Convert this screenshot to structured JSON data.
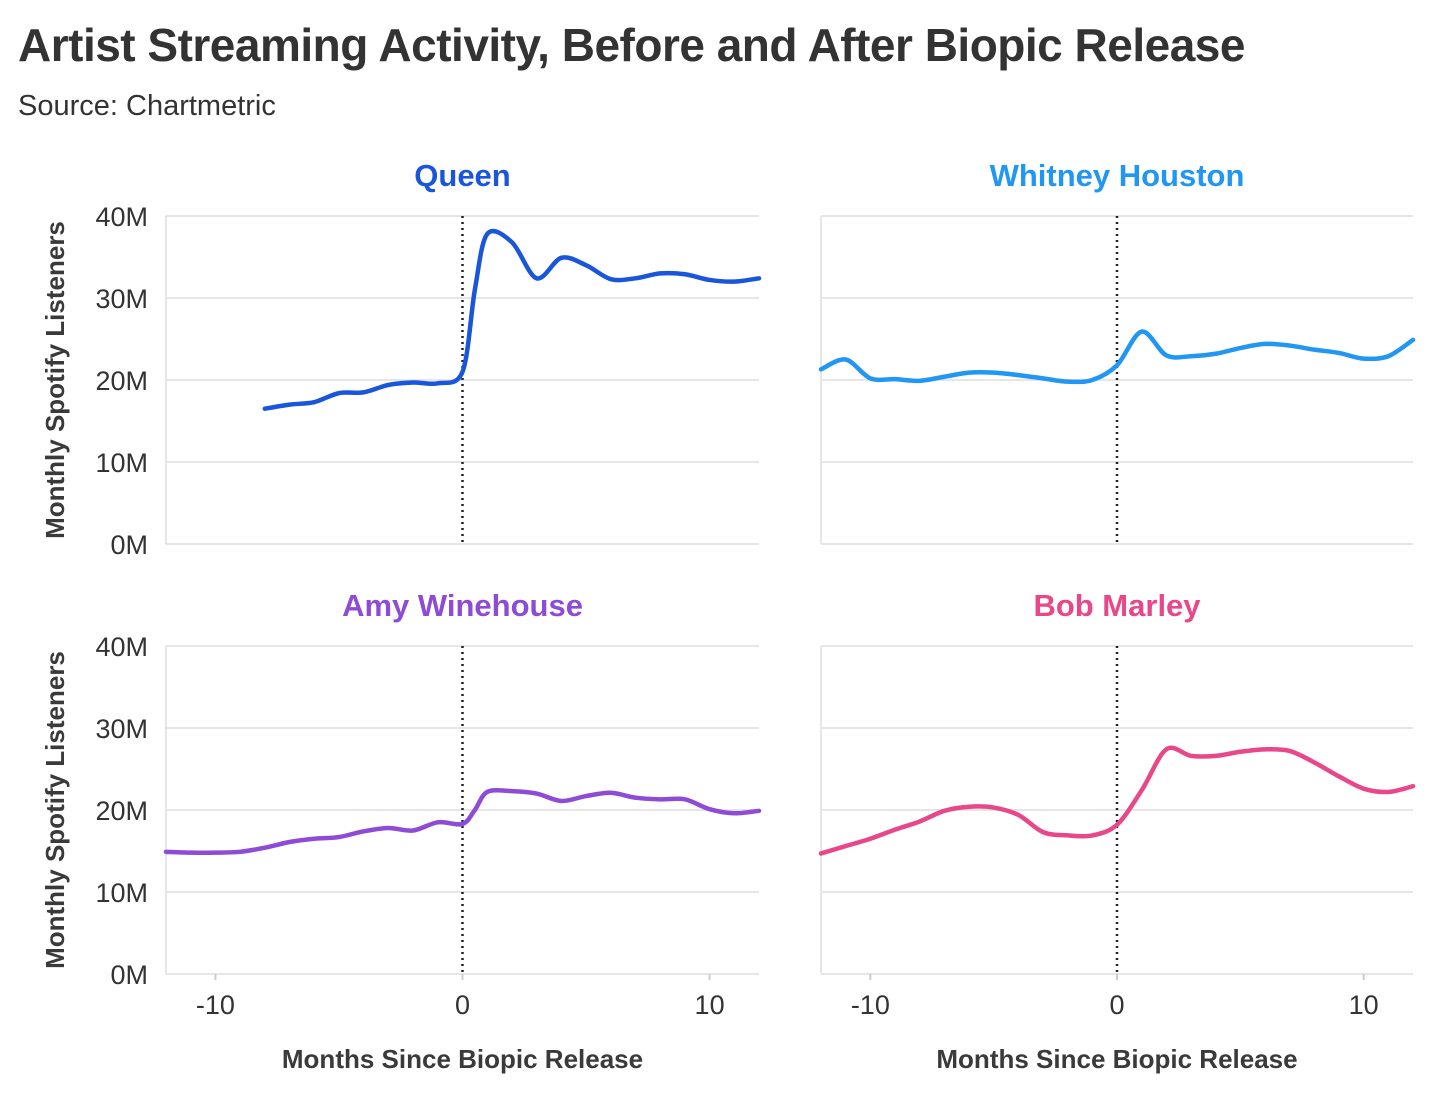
{
  "title": "Artist Streaming Activity, Before and After Biopic Release",
  "subtitle": "Source: Chartmetric",
  "chart_data": [
    {
      "type": "line",
      "title": "Queen",
      "color": "#1a56db",
      "xlabel": "Months Since Biopic Release",
      "ylabel": "Monthly Spotify Listeners",
      "xlim": [
        -12,
        12
      ],
      "ylim": [
        0,
        40
      ],
      "yticks": [
        "0M",
        "10M",
        "20M",
        "30M",
        "40M"
      ],
      "xticks": [
        "-10",
        "0",
        "10"
      ],
      "x": [
        -8,
        -7,
        -6,
        -5,
        -4,
        -3,
        -2,
        -1,
        0,
        0.5,
        1,
        2,
        3,
        4,
        5,
        6,
        7,
        8,
        9,
        10,
        11,
        12
      ],
      "values": [
        16.5,
        17.0,
        17.3,
        18.4,
        18.5,
        19.4,
        19.7,
        19.6,
        21.0,
        31.0,
        37.8,
        36.8,
        32.4,
        34.9,
        34.0,
        32.3,
        32.4,
        33.0,
        32.9,
        32.2,
        32.0,
        32.4
      ]
    },
    {
      "type": "line",
      "title": "Whitney Houston",
      "color": "#2196f3",
      "xlabel": "Months Since Biopic Release",
      "ylabel": "Monthly Spotify Listeners",
      "xlim": [
        -12,
        12
      ],
      "ylim": [
        0,
        40
      ],
      "yticks": [
        "0M",
        "10M",
        "20M",
        "30M",
        "40M"
      ],
      "xticks": [
        "-10",
        "0",
        "10"
      ],
      "x": [
        -12,
        -11,
        -10,
        -9,
        -8,
        -7,
        -6,
        -5,
        -4,
        -3,
        -2,
        -1,
        0,
        1,
        2,
        3,
        4,
        5,
        6,
        7,
        8,
        9,
        10,
        11,
        12
      ],
      "values": [
        21.3,
        22.5,
        20.2,
        20.1,
        19.9,
        20.4,
        20.9,
        20.9,
        20.6,
        20.2,
        19.8,
        20.0,
        21.8,
        25.9,
        23.0,
        22.9,
        23.2,
        23.9,
        24.4,
        24.2,
        23.7,
        23.3,
        22.6,
        22.9,
        24.9
      ]
    },
    {
      "type": "line",
      "title": "Amy Winehouse",
      "color": "#8e4bd6",
      "xlabel": "Months Since Biopic Release",
      "ylabel": "Monthly Spotify Listeners",
      "xlim": [
        -12,
        12
      ],
      "ylim": [
        0,
        40
      ],
      "yticks": [
        "0M",
        "10M",
        "20M",
        "30M",
        "40M"
      ],
      "xticks": [
        "-10",
        "0",
        "10"
      ],
      "x": [
        -12,
        -11,
        -10,
        -9,
        -8,
        -7,
        -6,
        -5,
        -4,
        -3,
        -2,
        -1,
        0,
        0.5,
        1,
        2,
        3,
        4,
        5,
        6,
        7,
        8,
        9,
        10,
        11,
        12
      ],
      "values": [
        14.9,
        14.8,
        14.8,
        14.9,
        15.4,
        16.1,
        16.5,
        16.7,
        17.4,
        17.8,
        17.5,
        18.5,
        18.3,
        20.0,
        22.2,
        22.3,
        22.0,
        21.1,
        21.7,
        22.1,
        21.5,
        21.3,
        21.3,
        20.1,
        19.6,
        19.9
      ]
    },
    {
      "type": "line",
      "title": "Bob Marley",
      "color": "#e8488a",
      "xlabel": "Months Since Biopic Release",
      "ylabel": "Monthly Spotify Listeners",
      "xlim": [
        -12,
        12
      ],
      "ylim": [
        0,
        40
      ],
      "yticks": [
        "0M",
        "10M",
        "20M",
        "30M",
        "40M"
      ],
      "xticks": [
        "-10",
        "0",
        "10"
      ],
      "x": [
        -12,
        -11,
        -10,
        -9,
        -8,
        -7,
        -6,
        -5,
        -4,
        -3,
        -2,
        -1,
        0,
        1,
        2,
        3,
        4,
        5,
        6,
        7,
        8,
        9,
        10,
        11,
        12
      ],
      "values": [
        14.7,
        15.6,
        16.5,
        17.6,
        18.6,
        19.9,
        20.4,
        20.3,
        19.4,
        17.3,
        16.9,
        16.9,
        18.2,
        22.4,
        27.4,
        26.6,
        26.6,
        27.1,
        27.4,
        27.2,
        25.8,
        24.1,
        22.6,
        22.2,
        22.9
      ]
    }
  ]
}
